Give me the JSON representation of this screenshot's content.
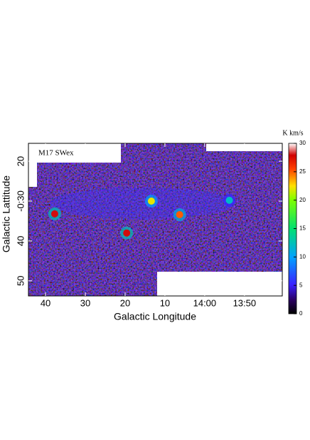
{
  "chart_data": {
    "type": "map",
    "title": "M17 SWex",
    "xlabel": "Galactic Longitude",
    "ylabel": "Galactic Lattitude",
    "colorbar_label": "K km/s",
    "xlim": [
      44.3,
      -19.5
    ],
    "ylim": [
      15.5,
      53.8
    ],
    "xticks": [
      40,
      30,
      20,
      10,
      {
        "value": 0,
        "label": "14:00"
      },
      {
        "value": -10,
        "label": "13:50"
      }
    ],
    "yticks": [
      20,
      {
        "value": 30,
        "label": "-0:30"
      },
      40,
      50
    ],
    "clim": [
      0,
      30
    ],
    "cticks": [
      0,
      5,
      10,
      15,
      20,
      25,
      30
    ],
    "series": [
      {
        "x": [
          37.7,
          19.6,
          13.4,
          6.3,
          -6.2
        ],
        "y": [
          33.2,
          38.0,
          30.0,
          33.4,
          29.8
        ],
        "values": [
          28,
          28,
          22,
          25,
          12
        ]
      }
    ]
  }
}
